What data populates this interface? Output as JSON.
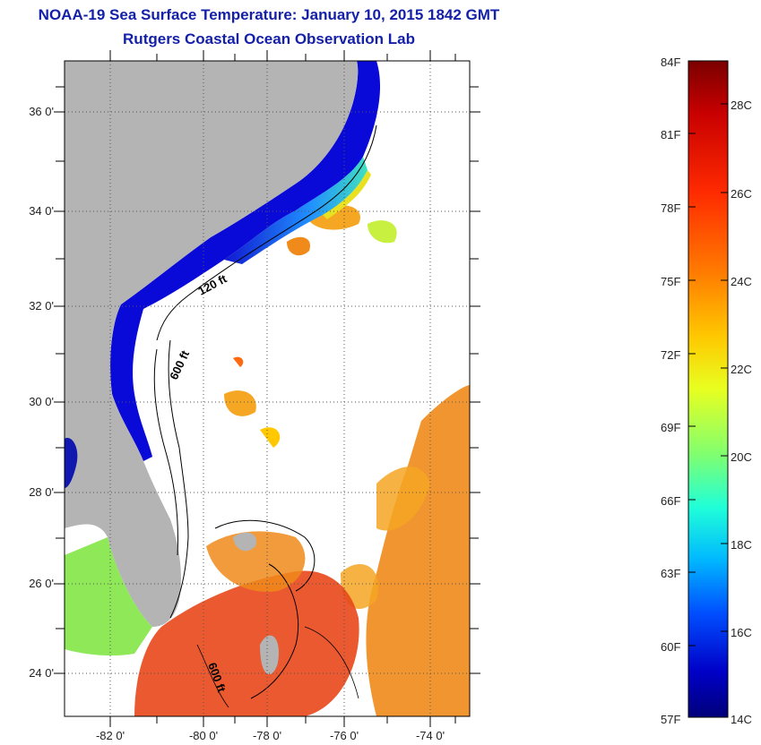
{
  "title": "NOAA-19 Sea Surface Temperature:  January 10, 2015 1842 GMT",
  "subtitle": "Rutgers Coastal Ocean Observation Lab",
  "lat_ticks": [
    "36 0'",
    "34 0'",
    "32 0'",
    "30 0'",
    "28 0'",
    "26 0'",
    "24 0'"
  ],
  "lon_ticks": [
    "-82 0'",
    "-80 0'",
    "-78 0'",
    "-76 0'",
    "-74 0'"
  ],
  "contours": {
    "shallow": "120 ft",
    "deep1": "600 ft",
    "deep2": "600 ft"
  },
  "colorbar": {
    "fahrenheit": [
      "84F",
      "81F",
      "78F",
      "75F",
      "72F",
      "69F",
      "66F",
      "63F",
      "60F",
      "57F"
    ],
    "celsius": [
      "28C",
      "26C",
      "24C",
      "22C",
      "20C",
      "18C",
      "16C",
      "14C"
    ],
    "colors": [
      "#7a0000",
      "#c80000",
      "#ff2a00",
      "#ff7a00",
      "#ffc800",
      "#e8ff20",
      "#80ff70",
      "#20ffd8",
      "#00b8ff",
      "#0050ff",
      "#0000c8",
      "#00007a"
    ]
  },
  "colors": {
    "land": "#b4b4b4",
    "title": "#1420a8",
    "nearshore": "#0a0ad8",
    "gulfstream": "#f08a1a",
    "warm": "#e82a10"
  }
}
